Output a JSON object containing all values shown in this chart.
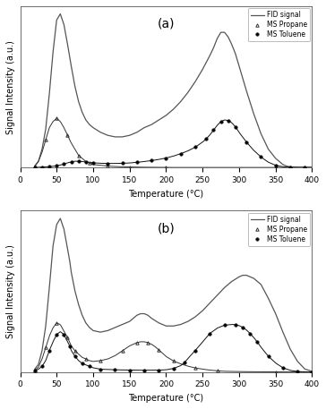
{
  "title_a": "(a)",
  "title_b": "(b)",
  "xlabel": "Temperature (°C)",
  "ylabel": "Signal Intensity (a.u.)",
  "xlim": [
    0,
    400
  ],
  "legend_labels": [
    "FID signal",
    "MS Propane",
    "MS Toluene"
  ],
  "background_color": "#ffffff",
  "panel_a": {
    "fid_x": [
      20,
      25,
      30,
      35,
      40,
      45,
      50,
      55,
      60,
      65,
      70,
      75,
      80,
      85,
      90,
      95,
      100,
      110,
      120,
      130,
      140,
      150,
      160,
      170,
      180,
      190,
      200,
      210,
      220,
      230,
      240,
      250,
      260,
      265,
      270,
      275,
      280,
      285,
      290,
      295,
      300,
      310,
      320,
      330,
      340,
      350,
      360,
      365,
      370,
      380,
      390,
      400
    ],
    "fid_y": [
      0.01,
      0.04,
      0.12,
      0.25,
      0.48,
      0.75,
      0.96,
      1.0,
      0.93,
      0.8,
      0.66,
      0.53,
      0.43,
      0.36,
      0.31,
      0.28,
      0.26,
      0.23,
      0.21,
      0.2,
      0.2,
      0.21,
      0.23,
      0.26,
      0.28,
      0.31,
      0.34,
      0.38,
      0.43,
      0.49,
      0.56,
      0.64,
      0.73,
      0.78,
      0.84,
      0.88,
      0.88,
      0.85,
      0.8,
      0.74,
      0.66,
      0.5,
      0.35,
      0.22,
      0.12,
      0.06,
      0.02,
      0.01,
      0.005,
      0.002,
      0.001,
      0.001
    ],
    "propane_x": [
      20,
      25,
      30,
      35,
      40,
      45,
      50,
      55,
      60,
      65,
      70,
      75,
      80,
      85,
      90,
      95,
      100,
      110,
      120,
      130,
      140,
      150,
      160,
      180,
      200,
      250,
      300,
      350,
      400
    ],
    "propane_y": [
      0.01,
      0.04,
      0.1,
      0.18,
      0.26,
      0.3,
      0.32,
      0.3,
      0.26,
      0.21,
      0.16,
      0.12,
      0.08,
      0.06,
      0.04,
      0.03,
      0.02,
      0.015,
      0.01,
      0.007,
      0.005,
      0.004,
      0.003,
      0.002,
      0.001,
      0.001,
      0.001,
      0.001,
      0.001
    ],
    "toluene_x": [
      20,
      25,
      30,
      35,
      40,
      45,
      50,
      55,
      60,
      65,
      70,
      75,
      80,
      85,
      90,
      95,
      100,
      110,
      120,
      130,
      140,
      150,
      160,
      170,
      180,
      190,
      200,
      210,
      220,
      230,
      240,
      250,
      255,
      260,
      265,
      270,
      275,
      280,
      285,
      290,
      295,
      300,
      310,
      320,
      330,
      340,
      350,
      360,
      370,
      380,
      390,
      400
    ],
    "toluene_y": [
      0.001,
      0.002,
      0.003,
      0.004,
      0.006,
      0.008,
      0.011,
      0.016,
      0.022,
      0.03,
      0.036,
      0.04,
      0.04,
      0.038,
      0.036,
      0.033,
      0.03,
      0.027,
      0.026,
      0.026,
      0.027,
      0.029,
      0.033,
      0.038,
      0.044,
      0.051,
      0.06,
      0.072,
      0.087,
      0.105,
      0.128,
      0.16,
      0.18,
      0.205,
      0.235,
      0.265,
      0.288,
      0.298,
      0.295,
      0.28,
      0.255,
      0.22,
      0.16,
      0.108,
      0.066,
      0.034,
      0.014,
      0.005,
      0.002,
      0.001,
      0.001,
      0.001
    ]
  },
  "panel_b": {
    "fid_x": [
      20,
      25,
      30,
      35,
      40,
      45,
      50,
      55,
      60,
      65,
      68,
      70,
      75,
      80,
      85,
      90,
      95,
      100,
      110,
      120,
      130,
      140,
      150,
      155,
      160,
      165,
      170,
      175,
      180,
      190,
      200,
      210,
      220,
      230,
      240,
      250,
      260,
      270,
      280,
      290,
      300,
      305,
      310,
      315,
      320,
      325,
      330,
      340,
      350,
      360,
      370,
      380,
      390,
      400
    ],
    "fid_y": [
      0.02,
      0.05,
      0.14,
      0.3,
      0.55,
      0.82,
      0.96,
      1.0,
      0.93,
      0.8,
      0.72,
      0.65,
      0.53,
      0.44,
      0.37,
      0.32,
      0.29,
      0.27,
      0.26,
      0.27,
      0.29,
      0.31,
      0.33,
      0.35,
      0.37,
      0.38,
      0.38,
      0.37,
      0.35,
      0.32,
      0.3,
      0.3,
      0.31,
      0.33,
      0.36,
      0.4,
      0.45,
      0.5,
      0.55,
      0.59,
      0.62,
      0.63,
      0.63,
      0.62,
      0.61,
      0.59,
      0.57,
      0.48,
      0.38,
      0.26,
      0.15,
      0.07,
      0.02,
      0.005
    ],
    "propane_x": [
      20,
      25,
      30,
      35,
      40,
      45,
      50,
      55,
      60,
      65,
      68,
      70,
      75,
      80,
      85,
      90,
      95,
      100,
      110,
      120,
      130,
      140,
      150,
      155,
      160,
      165,
      170,
      175,
      180,
      185,
      190,
      195,
      200,
      210,
      220,
      230,
      240,
      250,
      260,
      270,
      280,
      300,
      350,
      400
    ],
    "propane_y": [
      0.01,
      0.03,
      0.08,
      0.15,
      0.22,
      0.27,
      0.3,
      0.29,
      0.25,
      0.21,
      0.18,
      0.16,
      0.13,
      0.11,
      0.09,
      0.08,
      0.07,
      0.065,
      0.07,
      0.08,
      0.1,
      0.13,
      0.16,
      0.17,
      0.18,
      0.185,
      0.185,
      0.18,
      0.17,
      0.155,
      0.135,
      0.115,
      0.095,
      0.068,
      0.05,
      0.036,
      0.025,
      0.018,
      0.012,
      0.008,
      0.005,
      0.003,
      0.001,
      0.001
    ],
    "toluene_x": [
      20,
      25,
      30,
      35,
      40,
      45,
      50,
      55,
      60,
      65,
      68,
      70,
      75,
      80,
      85,
      90,
      95,
      100,
      110,
      120,
      130,
      140,
      150,
      160,
      170,
      180,
      190,
      200,
      210,
      220,
      225,
      230,
      240,
      250,
      260,
      270,
      280,
      290,
      295,
      300,
      305,
      310,
      315,
      320,
      325,
      330,
      340,
      350,
      360,
      370,
      380,
      390,
      400
    ],
    "toluene_y": [
      0.01,
      0.02,
      0.04,
      0.08,
      0.15,
      0.21,
      0.26,
      0.28,
      0.26,
      0.21,
      0.18,
      0.15,
      0.11,
      0.08,
      0.06,
      0.05,
      0.04,
      0.03,
      0.02,
      0.018,
      0.016,
      0.015,
      0.014,
      0.013,
      0.013,
      0.013,
      0.014,
      0.016,
      0.025,
      0.045,
      0.065,
      0.095,
      0.15,
      0.21,
      0.268,
      0.305,
      0.325,
      0.33,
      0.328,
      0.322,
      0.31,
      0.292,
      0.268,
      0.24,
      0.208,
      0.172,
      0.11,
      0.063,
      0.03,
      0.012,
      0.004,
      0.001,
      0.001
    ]
  },
  "fid_color": "#555555",
  "propane_color": "#333333",
  "toluene_color": "#111111",
  "marker_propane": "^",
  "marker_toluene": "o",
  "marker_size": 2.5,
  "marker_every_propane": 3,
  "marker_every_toluene": 2
}
